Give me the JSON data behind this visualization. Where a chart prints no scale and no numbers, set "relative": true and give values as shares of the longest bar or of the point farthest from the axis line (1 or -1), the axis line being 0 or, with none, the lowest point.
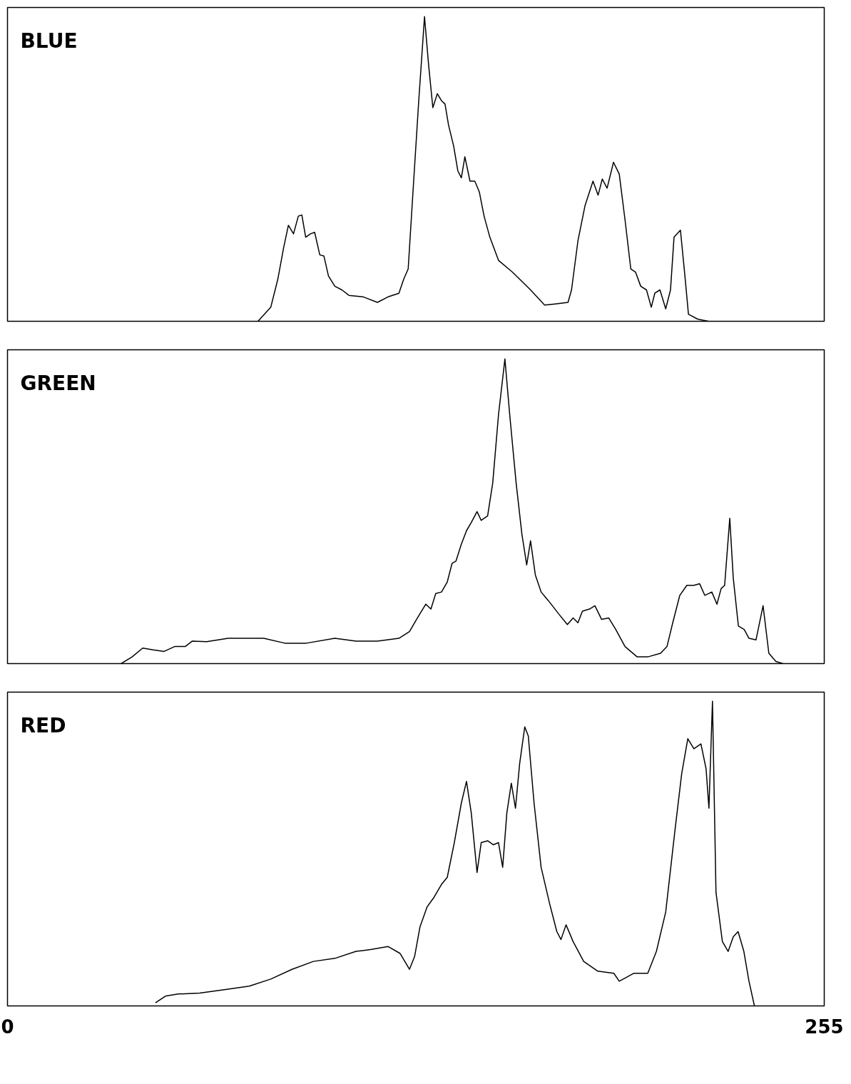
{
  "chart_data": [
    {
      "type": "line",
      "title": "BLUE",
      "relative": true,
      "xlim": [
        0,
        255
      ],
      "tick_labels": false,
      "series": [
        {
          "color": "#000000",
          "x": [
            78.2,
            82.2,
            84.4,
            86.2,
            87.7,
            89.3,
            90.8,
            91.9,
            93.1,
            94.6,
            95.9,
            97.5,
            98.8,
            100.2,
            102.2,
            104.4,
            106.6,
            111.1,
            115.5,
            118.8,
            122.2,
            123.7,
            125.1,
            126.6,
            128.4,
            130.2,
            131.5,
            132.8,
            134.2,
            135.5,
            136.6,
            137.7,
            139.3,
            140.6,
            141.7,
            142.8,
            144.4,
            145.9,
            147.3,
            148.8,
            150.6,
            153.3,
            157.7,
            163.3,
            167.7,
            171.0,
            175.0,
            176.1,
            178.1,
            180.3,
            182.8,
            184.4,
            185.7,
            187.2,
            189.2,
            191.0,
            192.8,
            194.6,
            196.1,
            197.7,
            199.5,
            201.0,
            202.1,
            203.7,
            205.5,
            207.0,
            208.1,
            210.1,
            211.5,
            212.6,
            215.5,
            218.8
          ],
          "values": [
            0,
            0.046,
            0.138,
            0.241,
            0.315,
            0.287,
            0.345,
            0.349,
            0.276,
            0.287,
            0.292,
            0.218,
            0.214,
            0.149,
            0.115,
            0.103,
            0.085,
            0.08,
            0.062,
            0.08,
            0.092,
            0.138,
            0.172,
            0.425,
            0.724,
            1.0,
            0.839,
            0.701,
            0.747,
            0.724,
            0.713,
            0.644,
            0.575,
            0.494,
            0.471,
            0.54,
            0.46,
            0.46,
            0.425,
            0.345,
            0.276,
            0.2,
            0.161,
            0.103,
            0.053,
            0.057,
            0.062,
            0.103,
            0.264,
            0.379,
            0.46,
            0.414,
            0.467,
            0.437,
            0.522,
            0.483,
            0.333,
            0.172,
            0.161,
            0.115,
            0.103,
            0.046,
            0.092,
            0.103,
            0.041,
            0.103,
            0.276,
            0.299,
            0.149,
            0.023,
            0.007,
            0
          ]
        }
      ]
    },
    {
      "type": "line",
      "title": "GREEN",
      "relative": true,
      "xlim": [
        0,
        255
      ],
      "tick_labels": false,
      "series": [
        {
          "color": "#000000",
          "x": [
            35.5,
            38.9,
            42.2,
            45.5,
            48.9,
            52.2,
            55.5,
            57.7,
            62.2,
            68.9,
            80.0,
            86.6,
            93.3,
            102.2,
            108.8,
            115.5,
            122.2,
            125.5,
            127.7,
            130.6,
            132.2,
            133.7,
            135.5,
            137.3,
            138.8,
            140.0,
            141.7,
            143.3,
            144.8,
            146.6,
            147.9,
            149.9,
            151.5,
            153.3,
            155.3,
            156.8,
            158.8,
            160.6,
            162.1,
            163.3,
            164.8,
            166.6,
            169.3,
            172.1,
            174.8,
            176.6,
            178.1,
            179.5,
            181.7,
            183.4,
            185.5,
            187.7,
            189.9,
            192.8,
            196.6,
            199.9,
            203.9,
            205.9,
            207.7,
            209.9,
            212.1,
            214.3,
            216.1,
            217.7,
            219.9,
            221.5,
            222.8,
            223.9,
            225.5,
            226.6,
            228.2,
            230.0,
            231.5,
            233.7,
            235.9,
            237.7,
            239.9,
            242.1
          ],
          "values": [
            0,
            0.022,
            0.051,
            0.045,
            0.04,
            0.056,
            0.056,
            0.074,
            0.072,
            0.083,
            0.083,
            0.067,
            0.067,
            0.083,
            0.074,
            0.074,
            0.083,
            0.105,
            0.145,
            0.195,
            0.179,
            0.23,
            0.235,
            0.268,
            0.329,
            0.336,
            0.392,
            0.436,
            0.463,
            0.499,
            0.47,
            0.485,
            0.593,
            0.817,
            1.0,
            0.817,
            0.593,
            0.425,
            0.324,
            0.403,
            0.291,
            0.235,
            0.201,
            0.163,
            0.128,
            0.15,
            0.134,
            0.172,
            0.179,
            0.19,
            0.145,
            0.15,
            0.112,
            0.056,
            0.022,
            0.022,
            0.034,
            0.056,
            0.134,
            0.224,
            0.257,
            0.257,
            0.262,
            0.224,
            0.235,
            0.195,
            0.246,
            0.257,
            0.477,
            0.28,
            0.123,
            0.112,
            0.083,
            0.078,
            0.19,
            0.034,
            0.007,
            0
          ]
        }
      ]
    },
    {
      "type": "line",
      "title": "RED",
      "relative": true,
      "xlim": [
        0,
        255
      ],
      "xticks": [
        0,
        255
      ],
      "tick_labels": "x",
      "series": [
        {
          "color": "#000000",
          "x": [
            46.2,
            49.3,
            53.3,
            60.0,
            68.9,
            75.5,
            82.2,
            88.8,
            95.5,
            102.2,
            108.8,
            113.3,
            118.8,
            122.6,
            125.5,
            127.1,
            128.8,
            131.0,
            133.2,
            135.5,
            137.3,
            139.5,
            141.7,
            143.3,
            144.8,
            146.6,
            147.9,
            149.9,
            151.7,
            153.3,
            154.6,
            155.9,
            157.3,
            158.6,
            159.9,
            161.5,
            162.6,
            164.4,
            166.6,
            169.3,
            171.5,
            172.8,
            174.4,
            176.6,
            179.9,
            184.3,
            189.3,
            191.0,
            195.5,
            199.9,
            202.6,
            205.5,
            208.3,
            210.5,
            212.4,
            214.3,
            216.5,
            218.1,
            219.0,
            220.1,
            221.2,
            223.2,
            225.0,
            226.6,
            228.1,
            229.9,
            231.5,
            233.2
          ],
          "values": [
            0.01,
            0.032,
            0.039,
            0.042,
            0.055,
            0.065,
            0.088,
            0.12,
            0.146,
            0.156,
            0.179,
            0.185,
            0.195,
            0.172,
            0.12,
            0.162,
            0.26,
            0.325,
            0.357,
            0.399,
            0.422,
            0.536,
            0.666,
            0.737,
            0.633,
            0.438,
            0.536,
            0.542,
            0.529,
            0.536,
            0.455,
            0.633,
            0.731,
            0.649,
            0.795,
            0.916,
            0.886,
            0.666,
            0.455,
            0.334,
            0.244,
            0.218,
            0.266,
            0.211,
            0.146,
            0.114,
            0.107,
            0.081,
            0.107,
            0.107,
            0.179,
            0.308,
            0.568,
            0.763,
            0.877,
            0.844,
            0.86,
            0.779,
            0.649,
            1.0,
            0.373,
            0.211,
            0.179,
            0.227,
            0.244,
            0.179,
            0.081,
            0
          ]
        }
      ]
    }
  ]
}
